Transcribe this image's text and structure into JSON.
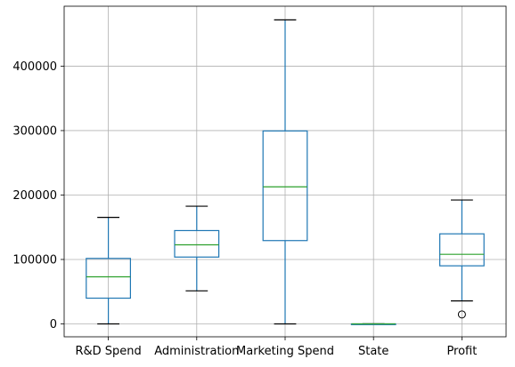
{
  "chart_data": {
    "type": "box",
    "title": "",
    "xlabel": "",
    "ylabel": "",
    "categories": [
      "R&D Spend",
      "Administration",
      "Marketing Spend",
      "State",
      "Profit"
    ],
    "ylim": [
      -20000,
      493000
    ],
    "yticks": [
      0,
      100000,
      200000,
      300000,
      400000
    ],
    "ytick_labels": [
      "0",
      "100000",
      "200000",
      "300000",
      "400000"
    ],
    "grid": true,
    "colors": {
      "box": "#1f77b4",
      "median": "#2ca02c",
      "grid": "#b0b0b0",
      "axis": "#000000"
    },
    "boxes": [
      {
        "name": "R&D Spend",
        "whislo": 0,
        "q1": 39936,
        "median": 73051,
        "q3": 101603,
        "whishi": 165349,
        "fliers": []
      },
      {
        "name": "Administration",
        "whislo": 51283,
        "q1": 103731,
        "median": 122700,
        "q3": 144842,
        "whishi": 182646,
        "fliers": []
      },
      {
        "name": "Marketing Spend",
        "whislo": 0,
        "q1": 129300,
        "median": 212716,
        "q3": 299470,
        "whishi": 471784,
        "fliers": []
      },
      {
        "name": "State",
        "whislo": 0,
        "q1": 0,
        "median": 1,
        "q3": 2,
        "whishi": 2,
        "fliers": []
      },
      {
        "name": "Profit",
        "whislo": 35673,
        "q1": 90139,
        "median": 107978,
        "q3": 139766,
        "whishi": 192262,
        "fliers": [
          14681
        ]
      }
    ]
  }
}
